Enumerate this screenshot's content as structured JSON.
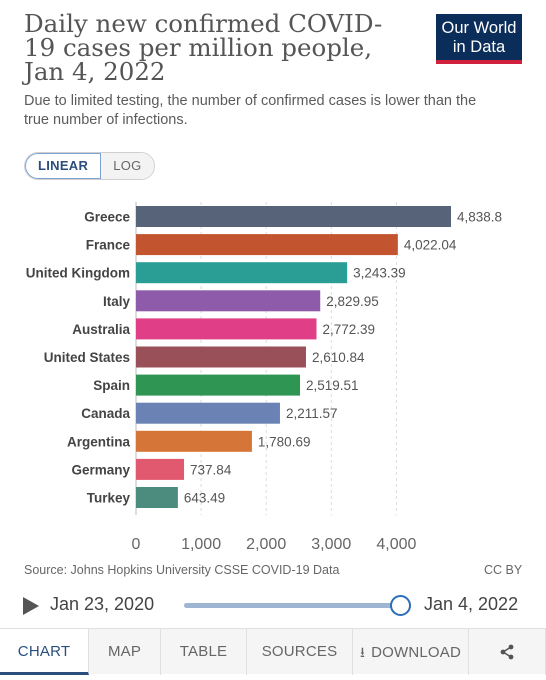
{
  "header": {
    "title": "Daily new confirmed COVID-19 cases per million people, Jan 4, 2022",
    "subtitle": "Due to limited testing, the number of confirmed cases is lower than the true number of infections.",
    "logo_line1": "Our World",
    "logo_line2": "in Data"
  },
  "scale_toggle": {
    "linear": "LINEAR",
    "log": "LOG",
    "selected": "LINEAR"
  },
  "chart_data": {
    "type": "bar",
    "orientation": "horizontal",
    "categories": [
      "Greece",
      "France",
      "United Kingdom",
      "Italy",
      "Australia",
      "United States",
      "Spain",
      "Canada",
      "Argentina",
      "Germany",
      "Turkey"
    ],
    "values": [
      4838.8,
      4022.04,
      3243.39,
      2829.95,
      2772.39,
      2610.84,
      2519.51,
      2211.57,
      1780.69,
      737.84,
      643.49
    ],
    "value_labels": [
      "4,838.8",
      "4,022.04",
      "3,243.39",
      "2,829.95",
      "2,772.39",
      "2,610.84",
      "2,519.51",
      "2,211.57",
      "1,780.69",
      "737.84",
      "643.49"
    ],
    "colors": [
      "#576379",
      "#c25430",
      "#2a9e95",
      "#8e5aaa",
      "#e03e86",
      "#9a5059",
      "#2e9553",
      "#6a82b4",
      "#d57638",
      "#e1596f",
      "#4c8c7f"
    ],
    "xticks": [
      0,
      1000,
      2000,
      3000,
      4000
    ],
    "xtick_labels": [
      "0",
      "1,000",
      "2,000",
      "3,000",
      "4,000"
    ],
    "xlim": [
      0,
      4838.8
    ],
    "grid": "vertical-dashed"
  },
  "footer": {
    "source": "Source: Johns Hopkins University CSSE COVID-19 Data",
    "license": "CC BY"
  },
  "timeline": {
    "start": "Jan 23, 2020",
    "end": "Jan 4, 2022",
    "position": 1.0
  },
  "tabs": [
    {
      "label": "CHART",
      "icon": "",
      "active": true
    },
    {
      "label": "MAP",
      "icon": "",
      "active": false
    },
    {
      "label": "TABLE",
      "icon": "",
      "active": false
    },
    {
      "label": "SOURCES",
      "icon": "",
      "active": false
    },
    {
      "label": "DOWNLOAD",
      "icon": "download-icon",
      "active": false
    },
    {
      "label": "",
      "icon": "share-icon",
      "active": false
    }
  ]
}
